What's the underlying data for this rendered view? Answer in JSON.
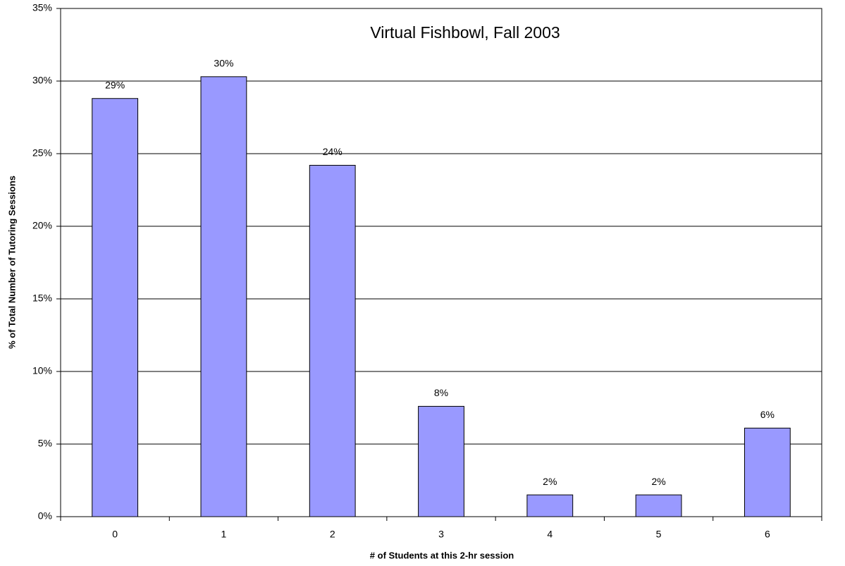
{
  "chart_data": {
    "type": "bar",
    "title": "Virtual Fishbowl, Fall 2003",
    "x_label": "# of Students at this 2-hr session",
    "y_label": "% of Total Number of Tutoring Sessions",
    "categories": [
      "0",
      "1",
      "2",
      "3",
      "4",
      "5",
      "6"
    ],
    "values": [
      28.8,
      30.3,
      24.2,
      7.6,
      1.5,
      1.5,
      6.1
    ],
    "value_labels": [
      "29%",
      "30%",
      "24%",
      "8%",
      "2%",
      "2%",
      "6%"
    ],
    "color": "#9999ff",
    "ylim": [
      0,
      35
    ],
    "yticks": [
      {
        "value": 0,
        "label": "0%"
      },
      {
        "value": 5,
        "label": "5%"
      },
      {
        "value": 10,
        "label": "10%"
      },
      {
        "value": 15,
        "label": "15%"
      },
      {
        "value": 20,
        "label": "20%"
      },
      {
        "value": 25,
        "label": "25%"
      },
      {
        "value": 30,
        "label": "30%"
      },
      {
        "value": 35,
        "label": "35%"
      }
    ],
    "grid": true
  }
}
